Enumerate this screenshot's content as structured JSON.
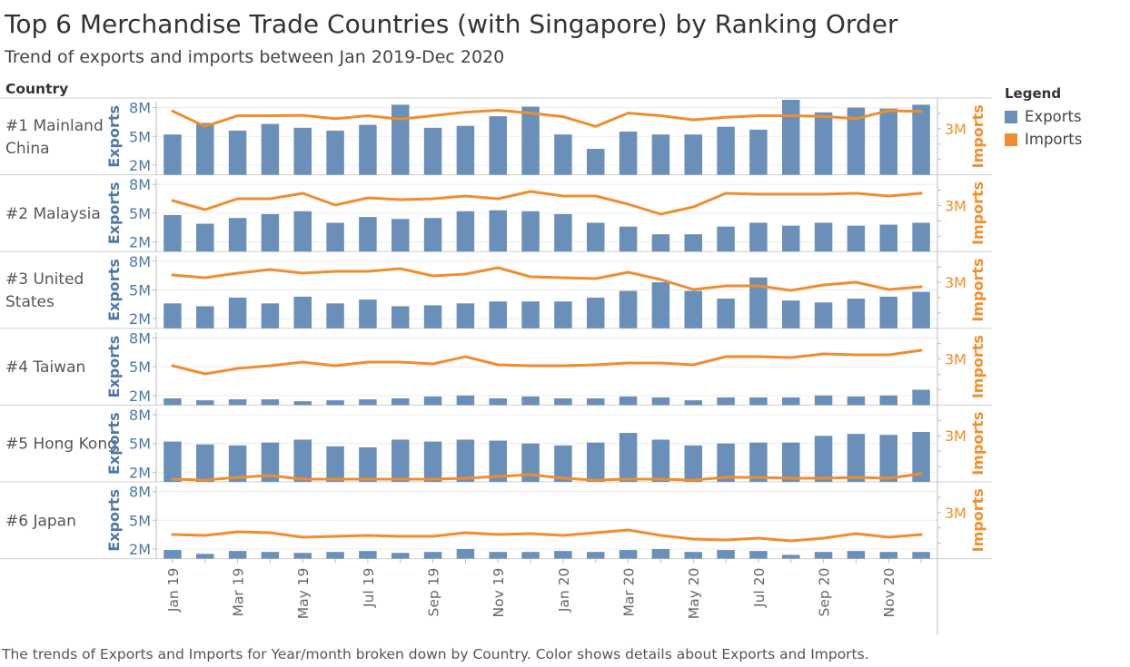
{
  "title": "Top 6 Merchandise Trade Countries (with Singapore) by Ranking Order",
  "subtitle": "Trend of exports and imports between Jan 2019-Dec 2020",
  "caption": "The trends of Exports and Imports for Year/month broken down by Country.  Color shows details about Exports and Imports.",
  "legend": {
    "title": "Legend",
    "items": [
      {
        "label": "Exports",
        "color": "#6a8fb8"
      },
      {
        "label": "Imports",
        "color": "#ef8d2f"
      }
    ]
  },
  "colors": {
    "exports": "#6a8fb8",
    "imports": "#ef8d2f",
    "exports_axis": "#4e79a7",
    "imports_axis": "#f28e2b"
  },
  "chart_data": {
    "type": "bar",
    "row_header": "Country",
    "left_axis_title": "Exports",
    "right_axis_title": "Imports",
    "left_ticks": [
      {
        "value": 2000000,
        "label": "2M"
      },
      {
        "value": 5000000,
        "label": "5M"
      },
      {
        "value": 8000000,
        "label": "8M"
      }
    ],
    "right_ticks": [
      {
        "value": 3000000,
        "label": "3M"
      }
    ],
    "left_range": [
      1000000,
      9000000
    ],
    "right_range": [
      0,
      5000000
    ],
    "x": [
      "2019-01",
      "2019-02",
      "2019-03",
      "2019-04",
      "2019-05",
      "2019-06",
      "2019-07",
      "2019-08",
      "2019-09",
      "2019-10",
      "2019-11",
      "2019-12",
      "2020-01",
      "2020-02",
      "2020-03",
      "2020-04",
      "2020-05",
      "2020-06",
      "2020-07",
      "2020-08",
      "2020-09",
      "2020-10",
      "2020-11",
      "2020-12"
    ],
    "x_tick_labels": [
      {
        "index": 0,
        "label": "Jan 19"
      },
      {
        "index": 2,
        "label": "Mar 19"
      },
      {
        "index": 4,
        "label": "May 19"
      },
      {
        "index": 6,
        "label": "Jul 19"
      },
      {
        "index": 8,
        "label": "Sep 19"
      },
      {
        "index": 10,
        "label": "Nov 19"
      },
      {
        "index": 12,
        "label": "Jan 20"
      },
      {
        "index": 14,
        "label": "Mar 20"
      },
      {
        "index": 16,
        "label": "May 20"
      },
      {
        "index": 18,
        "label": "Jul 20"
      },
      {
        "index": 20,
        "label": "Sep 20"
      },
      {
        "index": 22,
        "label": "Nov 20"
      }
    ],
    "rows": [
      {
        "label": "#1 Mainland China",
        "exports": [
          5200000,
          6400000,
          5600000,
          6300000,
          5900000,
          5600000,
          6200000,
          8300000,
          5900000,
          6100000,
          7100000,
          8100000,
          5200000,
          3700000,
          5500000,
          5200000,
          5200000,
          6000000,
          5700000,
          9000000,
          7500000,
          8000000,
          7900000,
          8300000
        ],
        "imports": [
          4150000,
          3150000,
          3850000,
          3850000,
          3870000,
          3650000,
          3850000,
          3620000,
          3850000,
          4080000,
          4200000,
          4020000,
          3780000,
          3150000,
          4020000,
          3850000,
          3580000,
          3750000,
          3850000,
          3850000,
          3800000,
          3650000,
          4180000,
          4120000
        ]
      },
      {
        "label": "#2 Malaysia",
        "exports": [
          4800000,
          3900000,
          4500000,
          4900000,
          5200000,
          4000000,
          4600000,
          4400000,
          4500000,
          5200000,
          5300000,
          5200000,
          4900000,
          4000000,
          3600000,
          2800000,
          2800000,
          3600000,
          4000000,
          3700000,
          4000000,
          3700000,
          3800000,
          4000000
        ]
      },
      {
        "label": "#3 United States",
        "exports": [
          3600000,
          3300000,
          4200000,
          3600000,
          4300000,
          3600000,
          4000000,
          3300000,
          3400000,
          3600000,
          3800000,
          3800000,
          3800000,
          4200000,
          4900000,
          5800000,
          4900000,
          4100000,
          6300000,
          3900000,
          3700000,
          4100000,
          4300000,
          4800000
        ]
      },
      {
        "label": "#4 Taiwan",
        "exports": [
          1700000,
          1500000,
          1600000,
          1600000,
          1400000,
          1500000,
          1600000,
          1700000,
          1900000,
          2000000,
          1700000,
          1900000,
          1700000,
          1700000,
          1900000,
          1800000,
          1500000,
          1800000,
          1800000,
          1800000,
          2000000,
          1900000,
          2000000,
          2600000
        ]
      },
      {
        "label": "#5 Hong Kong",
        "exports": [
          5200000,
          4900000,
          4800000,
          5100000,
          5400000,
          4700000,
          4600000,
          5400000,
          5200000,
          5400000,
          5300000,
          5000000,
          4800000,
          5100000,
          6100000,
          5400000,
          4800000,
          5000000,
          5100000,
          5100000,
          5800000,
          6000000,
          5900000,
          6200000
        ]
      },
      {
        "label": "#6 Japan",
        "exports": [
          1900000,
          1500000,
          1800000,
          1700000,
          1600000,
          1700000,
          1800000,
          1600000,
          1700000,
          2000000,
          1700000,
          1700000,
          1800000,
          1700000,
          1900000,
          2000000,
          1700000,
          1900000,
          1800000,
          1400000,
          1700000,
          1800000,
          1700000,
          1700000
        ]
      }
    ]
  }
}
